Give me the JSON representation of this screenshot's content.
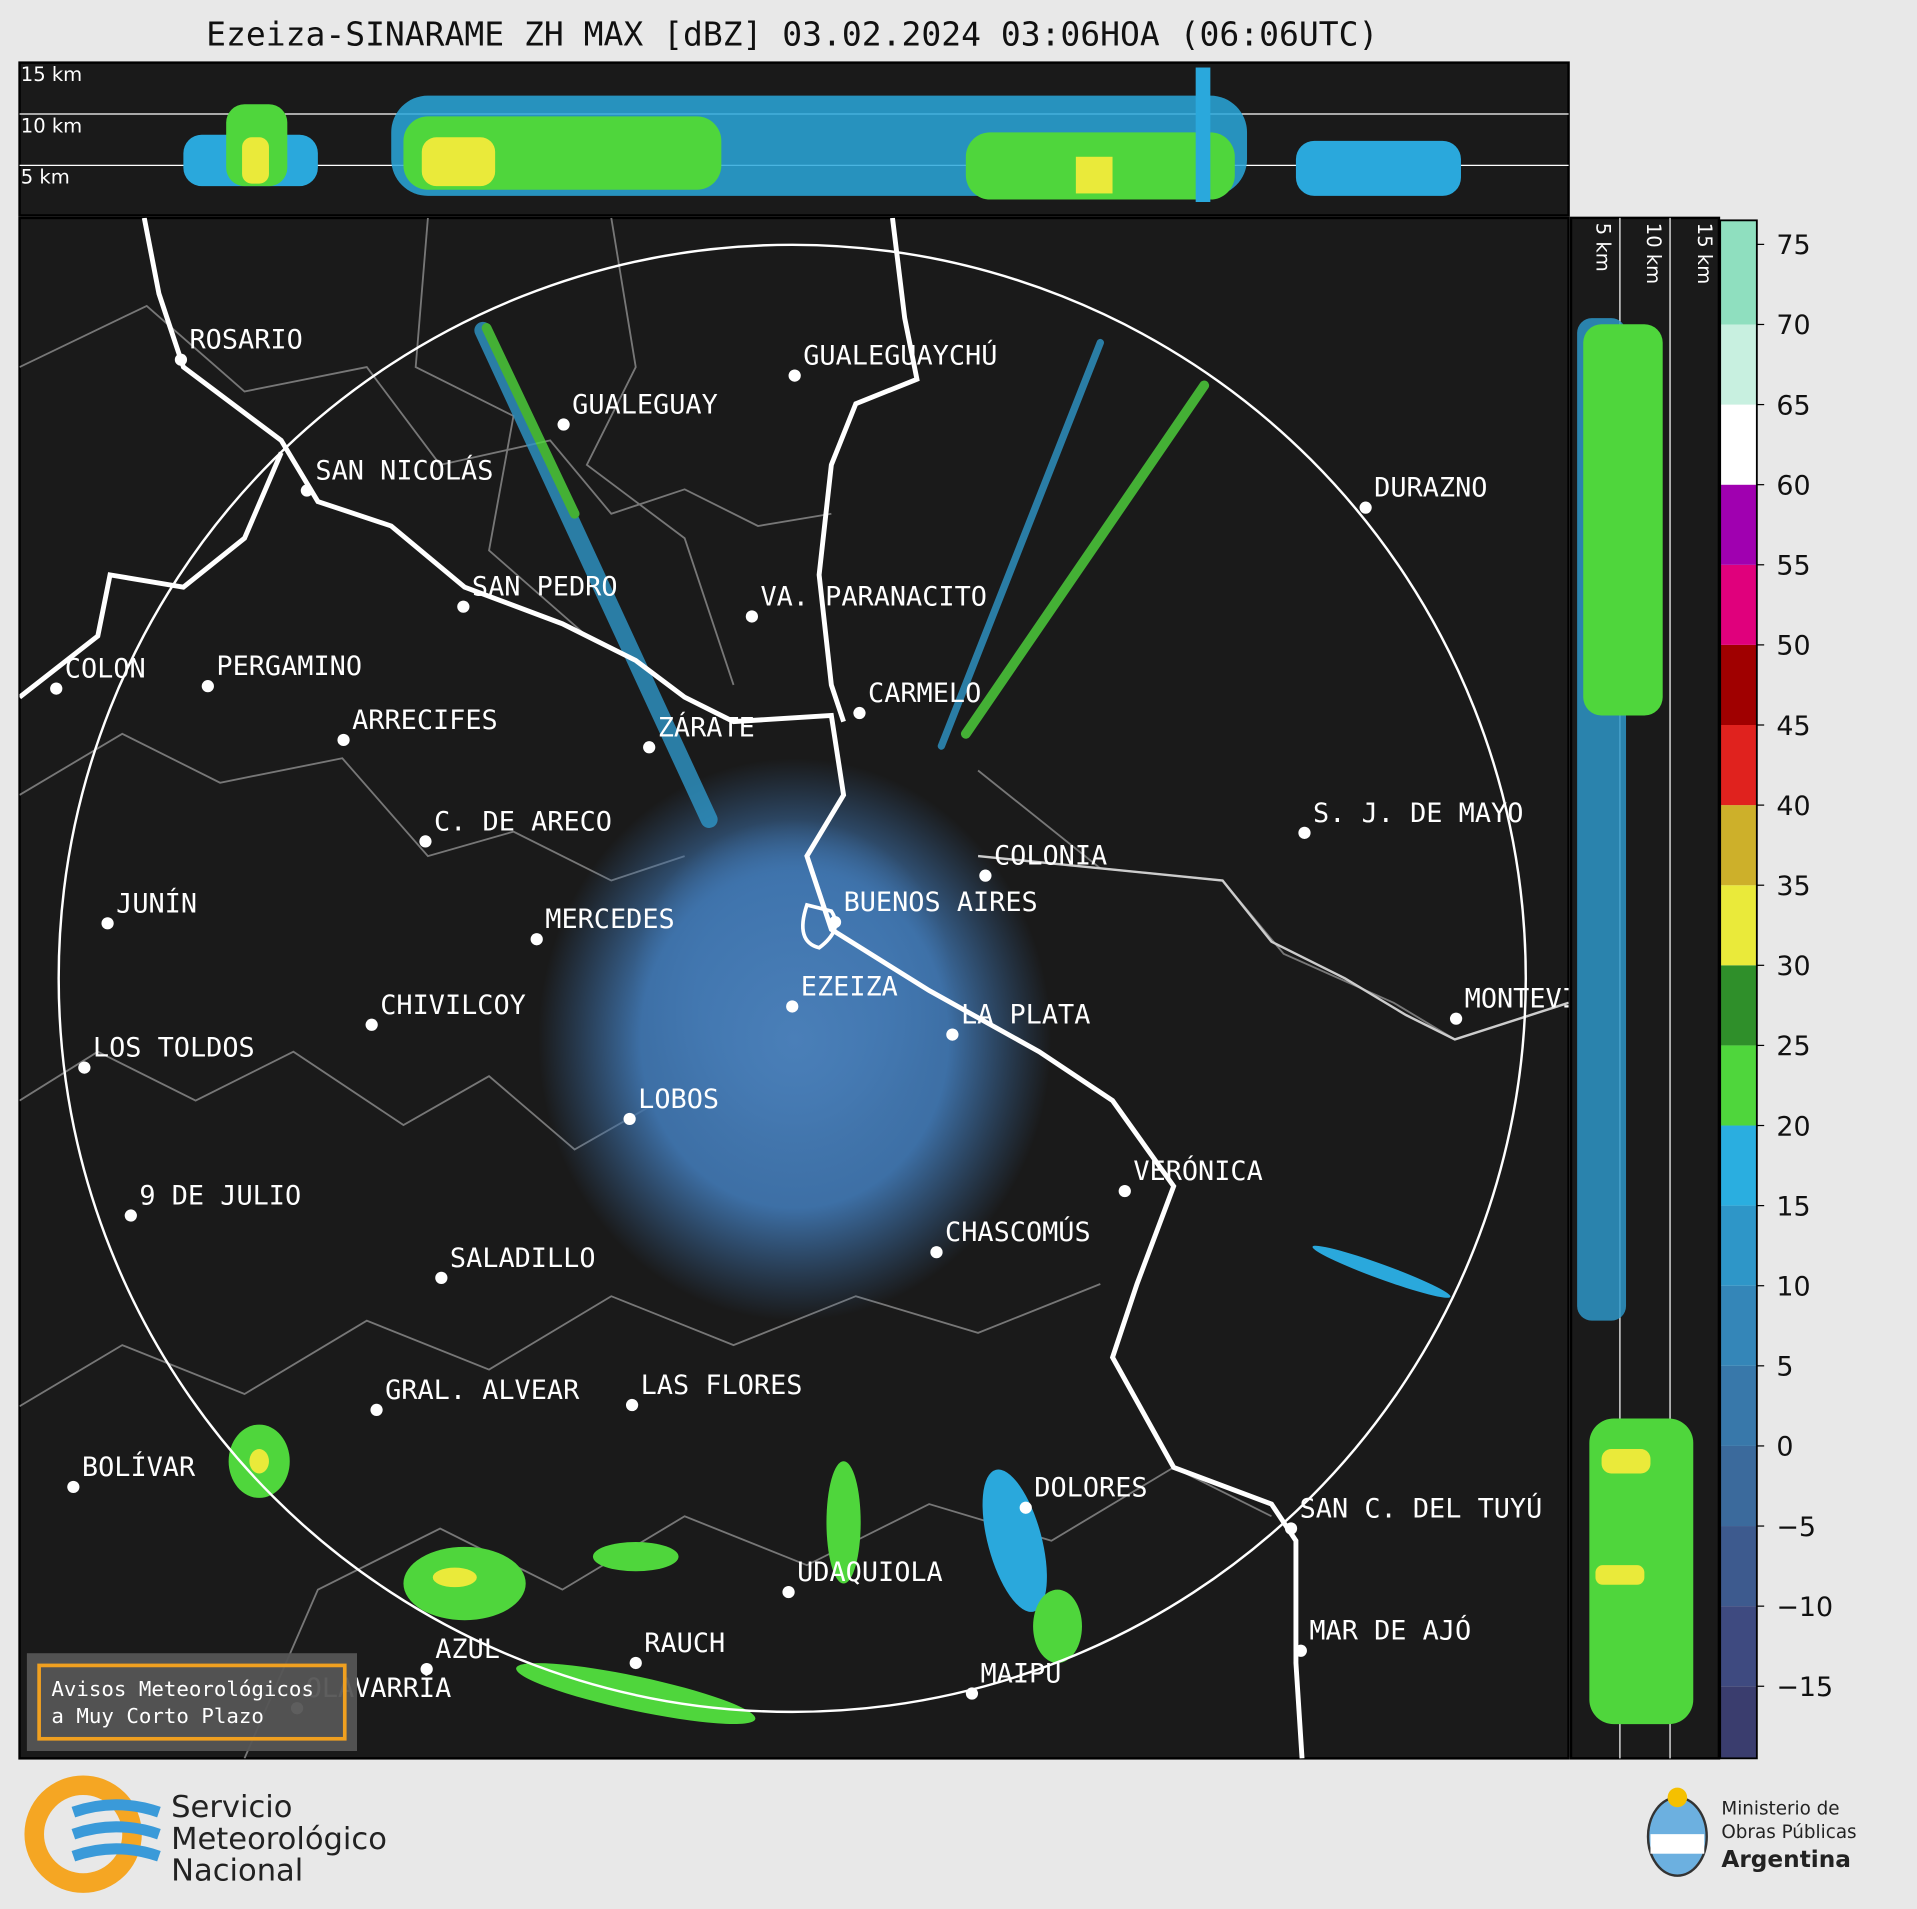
{
  "title": "Ezeiza-SINARAME ZH MAX [dBZ] 03.02.2024 03:06HOA (06:06UTC)",
  "top_heights": [
    "15 km",
    "10 km",
    "5 km"
  ],
  "side_heights": [
    "5 km",
    "10 km",
    "15 km"
  ],
  "cities": [
    "ROSARIO",
    "GUALEGUAYCHÚ",
    "GUALEGUAY",
    "SAN NICOLÁS",
    "DURAZNO",
    "SAN PEDRO",
    "VA. PARANACITO",
    "COLON",
    "PERGAMINO",
    "CARMELO",
    "ARRECIFES",
    "ZÁRATE",
    "S. J. DE MAYO",
    "C. DE ARECO",
    "COLONIA",
    "BUENOS AIRES",
    "JUNÍN",
    "MERCEDES",
    "EZEIZA",
    "MONTEVIDEO",
    "CHIVILCOY",
    "LA PLATA",
    "LOS TOLDOS",
    "LOBOS",
    "VERÓNICA",
    "9 DE JULIO",
    "CHASCOMÚS",
    "SALADILLO",
    "GRAL. ALVEAR",
    "LAS FLORES",
    "BOLÍVAR",
    "DOLORES",
    "SAN C. DEL TUYÚ",
    "UDAQUIOLA",
    "MAR DE AJÓ",
    "RAUCH",
    "AZUL",
    "OLAVARRÍA",
    "MAIPU"
  ],
  "colorbar": {
    "lim": [
      -19.5,
      76.5
    ],
    "ticks": [
      75,
      70,
      65,
      60,
      55,
      50,
      45,
      40,
      35,
      30,
      25,
      20,
      15,
      10,
      5,
      0,
      {
        "value": -5,
        "label": "−5"
      },
      {
        "value": -10,
        "label": "−10"
      },
      {
        "value": -15,
        "label": "−15"
      }
    ],
    "bounds": [
      -19.5,
      -15,
      -10,
      -5,
      0,
      5,
      10,
      15,
      20,
      25,
      30,
      35,
      40,
      45,
      50,
      55,
      60,
      65,
      70,
      76.5
    ],
    "colors": [
      "#3a3d6e",
      "#3e4a80",
      "#3d5a8e",
      "#3b6a9c",
      "#3878aa",
      "#3486b8",
      "#2e96c8",
      "#2aaee0",
      "#4fd63c",
      "#2f8f2a",
      "#eaea3a",
      "#cdb02a",
      "#e0221e",
      "#a00000",
      "#e0007c",
      "#a000b0",
      "#ffffff",
      "#c8f0e0",
      "#8fdfbf"
    ]
  },
  "warning": [
    "Avisos Meteorológicos",
    "a Muy Corto Plazo"
  ],
  "logo": [
    "Servicio",
    "Meteorológico",
    "Nacional"
  ],
  "ministry": [
    "Ministerio de",
    "Obras Públicas",
    "Argentina"
  ]
}
